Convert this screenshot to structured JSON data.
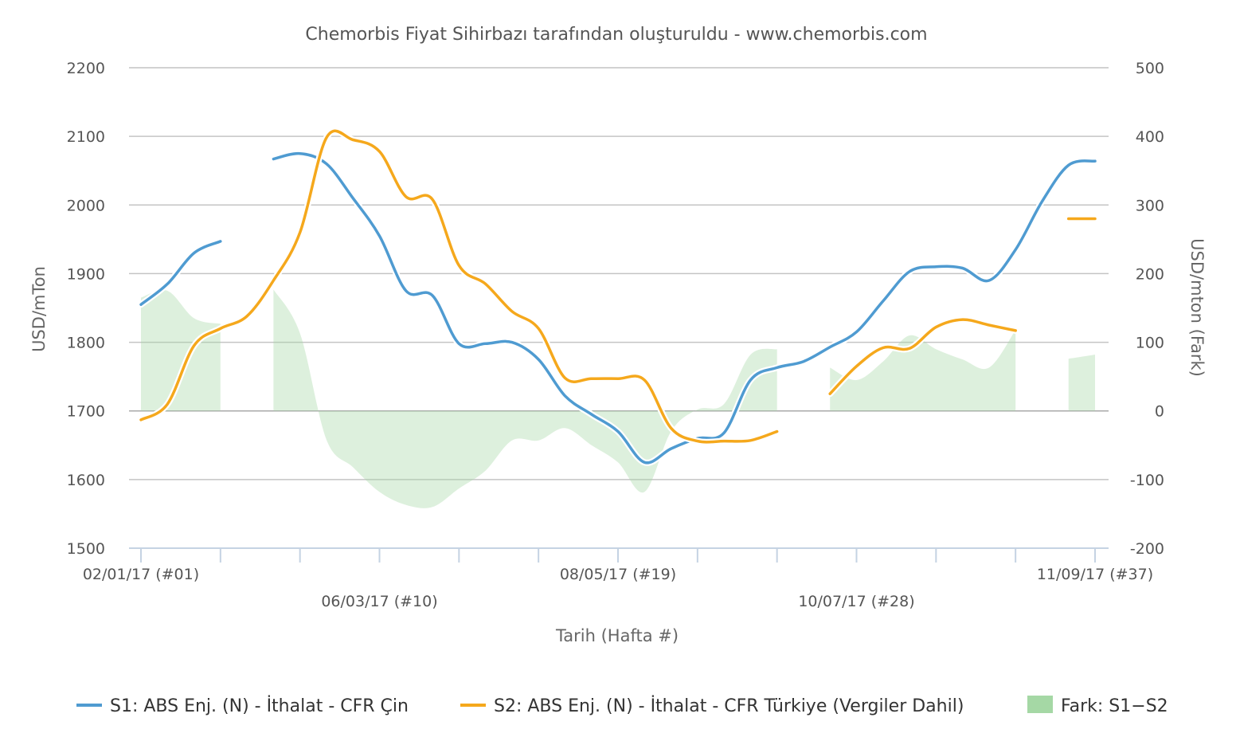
{
  "chart_data": {
    "type": "line",
    "title": "Chemorbis Fiyat Sihirbazı tarafından oluşturuldu - www.chemorbis.com",
    "xlabel": "Tarih (Hafta #)",
    "ylabel": "USD/mTon",
    "y2label": "USD/mton (Fark)",
    "ylim": [
      1500,
      2200
    ],
    "y2lim": [
      -200,
      500
    ],
    "yticks": [
      "1500",
      "1600",
      "1700",
      "1800",
      "1900",
      "2000",
      "2100",
      "2200"
    ],
    "y2ticks": [
      "-200",
      "-100",
      "0",
      "100",
      "200",
      "300",
      "400",
      "500"
    ],
    "xlim": [
      1,
      37
    ],
    "xticks": [
      1,
      4,
      7,
      10,
      13,
      16,
      19,
      22,
      25,
      28,
      31,
      34,
      37
    ],
    "xtick_labels": [
      {
        "week": 1,
        "label": "02/01/17 (#01)",
        "row": 1
      },
      {
        "week": 10,
        "label": "06/03/17 (#10)",
        "row": 2
      },
      {
        "week": 19,
        "label": "08/05/17 (#19)",
        "row": 1
      },
      {
        "week": 28,
        "label": "10/07/17 (#28)",
        "row": 2
      },
      {
        "week": 37,
        "label": "11/09/17 (#37)",
        "row": 1
      }
    ],
    "grid": true,
    "legend_position": "bottom",
    "series": [
      {
        "name": "S1: ABS Enj. (N) - İthalat - CFR Çin",
        "color": "#4f9bd1",
        "axis": "left",
        "segments": [
          [
            [
              1,
              1855
            ],
            [
              2,
              1885
            ],
            [
              3,
              1930
            ],
            [
              4,
              1947
            ]
          ],
          [
            [
              6,
              2067
            ],
            [
              7,
              2075
            ],
            [
              8,
              2060
            ],
            [
              9,
              2010
            ],
            [
              10,
              1955
            ],
            [
              11,
              1875
            ],
            [
              12,
              1868
            ],
            [
              13,
              1798
            ],
            [
              14,
              1798
            ],
            [
              15,
              1800
            ],
            [
              16,
              1775
            ],
            [
              17,
              1722
            ],
            [
              18,
              1695
            ],
            [
              19,
              1670
            ],
            [
              20,
              1625
            ],
            [
              21,
              1645
            ],
            [
              22,
              1660
            ],
            [
              23,
              1668
            ],
            [
              24,
              1745
            ],
            [
              25,
              1763
            ],
            [
              26,
              1772
            ],
            [
              27,
              1793
            ],
            [
              28,
              1815
            ],
            [
              29,
              1860
            ],
            [
              30,
              1903
            ],
            [
              31,
              1910
            ],
            [
              32,
              1908
            ],
            [
              33,
              1890
            ],
            [
              34,
              1935
            ],
            [
              35,
              2005
            ],
            [
              36,
              2058
            ],
            [
              37,
              2064
            ]
          ]
        ]
      },
      {
        "name": "S2: ABS Enj. (N) - İthalat - CFR Türkiye (Vergiler Dahil)",
        "color": "#f5a81c",
        "axis": "left",
        "segments": [
          [
            [
              1,
              1687
            ],
            [
              2,
              1710
            ],
            [
              3,
              1795
            ],
            [
              4,
              1820
            ],
            [
              5,
              1838
            ],
            [
              6,
              1890
            ],
            [
              7,
              1960
            ],
            [
              8,
              2098
            ],
            [
              9,
              2095
            ],
            [
              10,
              2078
            ],
            [
              11,
              2012
            ],
            [
              12,
              2008
            ],
            [
              13,
              1912
            ],
            [
              14,
              1885
            ],
            [
              15,
              1845
            ],
            [
              16,
              1820
            ],
            [
              17,
              1748
            ],
            [
              18,
              1747
            ],
            [
              19,
              1747
            ],
            [
              20,
              1745
            ],
            [
              21,
              1675
            ],
            [
              22,
              1656
            ],
            [
              23,
              1656
            ],
            [
              24,
              1657
            ],
            [
              25,
              1670
            ]
          ],
          [
            [
              27,
              1725
            ],
            [
              28,
              1765
            ],
            [
              29,
              1792
            ],
            [
              30,
              1791
            ],
            [
              31,
              1822
            ],
            [
              32,
              1833
            ],
            [
              33,
              1825
            ],
            [
              34,
              1817
            ]
          ],
          [
            [
              36,
              1980
            ],
            [
              37,
              1980
            ]
          ]
        ]
      },
      {
        "name": "Fark: S1−S2",
        "color": "#a5d8a5",
        "axis": "right",
        "type": "area",
        "segments": [
          [
            [
              1,
              165
            ],
            [
              2,
              175
            ],
            [
              3,
              135
            ],
            [
              4,
              127
            ]
          ],
          [
            [
              6,
              177
            ],
            [
              7,
              113
            ],
            [
              8,
              -42
            ],
            [
              9,
              -82
            ],
            [
              10,
              -118
            ],
            [
              11,
              -137
            ],
            [
              12,
              -140
            ],
            [
              13,
              -113
            ],
            [
              14,
              -87
            ],
            [
              15,
              -43
            ],
            [
              16,
              -43
            ],
            [
              17,
              -25
            ],
            [
              18,
              -50
            ],
            [
              19,
              -75
            ],
            [
              20,
              -118
            ],
            [
              21,
              -30
            ],
            [
              22,
              2
            ],
            [
              23,
              10
            ],
            [
              24,
              82
            ],
            [
              25,
              90
            ]
          ],
          [
            [
              27,
              63
            ],
            [
              28,
              45
            ],
            [
              29,
              72
            ],
            [
              30,
              110
            ],
            [
              31,
              90
            ],
            [
              32,
              75
            ],
            [
              33,
              63
            ],
            [
              34,
              118
            ]
          ],
          [
            [
              36,
              76
            ],
            [
              37,
              82
            ]
          ]
        ]
      }
    ]
  }
}
